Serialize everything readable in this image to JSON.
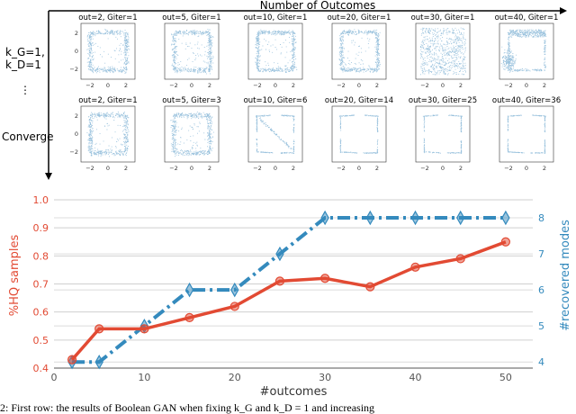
{
  "top_panel": {
    "header": "Number of Outcomes",
    "row_labels": [
      "k_G=1,",
      "k_D=1",
      "⋮",
      "Converge"
    ],
    "row1_titles": [
      "out=2, Giter=1",
      "out=5, Giter=1",
      "out=10, Giter=1",
      "out=20, Giter=1",
      "out=30, Giter=1",
      "out=40, Giter=1"
    ],
    "row2_titles": [
      "out=2, Giter=1",
      "out=5, Giter=3",
      "out=10, Giter=6",
      "out=20, Giter=14",
      "out=30, Giter=25",
      "out=40, Giter=36"
    ],
    "x_ticks": [
      "−2",
      "0",
      "2"
    ],
    "y_ticks": [
      "2",
      "0",
      "−2"
    ],
    "point_color": "#1f77b4"
  },
  "chart_data": {
    "type": "line",
    "xlabel": "#outcomes",
    "ylabel_left": "%HQ samples",
    "ylabel_right": "#recovered modes",
    "xlim": [
      0,
      53
    ],
    "ylim_left": [
      0.4,
      1.0
    ],
    "ylim_right": [
      3.83,
      8.5
    ],
    "x_ticks": [
      0,
      10,
      20,
      30,
      40,
      50
    ],
    "y_ticks_left": [
      "0.4",
      "0.5",
      "0.6",
      "0.7",
      "0.8",
      "0.9",
      "1.0"
    ],
    "y_ticks_right": [
      "4",
      "5",
      "6",
      "7",
      "8"
    ],
    "grid": true,
    "series": [
      {
        "axis": "left",
        "color": "#e24a33",
        "x": [
          2,
          5,
          10,
          15,
          20,
          25,
          30,
          35,
          40,
          45,
          50
        ],
        "values": [
          0.43,
          0.54,
          0.54,
          0.58,
          0.62,
          0.71,
          0.72,
          0.69,
          0.76,
          0.79,
          0.85
        ]
      },
      {
        "axis": "right",
        "color": "#348abd",
        "x": [
          2,
          5,
          10,
          15,
          20,
          25,
          30,
          35,
          40,
          45,
          50
        ],
        "values": [
          4,
          4,
          5,
          6,
          6,
          7,
          8,
          8,
          8,
          8,
          8
        ]
      }
    ]
  },
  "caption": "2: First row: the results of Boolean GAN when fixing k_G and k_D = 1 and increasing"
}
